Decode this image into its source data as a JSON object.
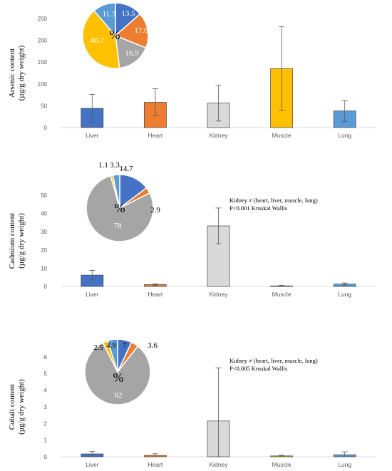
{
  "colors": {
    "liver": "#4472C4",
    "heart": "#ED7D31",
    "kidney": "#D9D9D9",
    "muscle": "#FFC000",
    "lung": "#5B9BD5",
    "pie_grey": "#A5A5A5",
    "axis": "#D9D9D9",
    "error": "#595959"
  },
  "pie_symbol": "%",
  "chart_data": [
    {
      "type": "bar",
      "ylabel_line1": "Arsenic content",
      "ylabel_line2": "(µg/g dry weight)",
      "categories": [
        "Liver",
        "Heart",
        "Kidney",
        "Muscle",
        "Lung"
      ],
      "values": [
        44,
        58,
        56,
        135,
        38
      ],
      "errors": [
        32,
        31,
        41,
        96,
        24
      ],
      "ylim": [
        0,
        250
      ],
      "yticks": [
        0,
        50,
        100,
        150,
        200,
        250
      ],
      "note_lines": [],
      "inset_pie": {
        "type": "pie",
        "values": [
          13.5,
          17.6,
          16.9,
          40.7,
          11.3
        ],
        "labels": [
          "13.5",
          "17.6",
          "16.9",
          "40.7",
          "11.3"
        ],
        "colors": [
          "#4472C4",
          "#ED7D31",
          "#A5A5A5",
          "#FFC000",
          "#5B9BD5"
        ]
      }
    },
    {
      "type": "bar",
      "ylabel_line1": "Cadmium content",
      "ylabel_line2": "(µg/g dry weight)",
      "categories": [
        "Liver",
        "Heart",
        "Kidney",
        "Muscle",
        "Lung"
      ],
      "values": [
        6.2,
        1.0,
        33.2,
        0.3,
        1.3
      ],
      "errors": [
        2.6,
        0.5,
        9.8,
        0.3,
        0.6
      ],
      "ylim": [
        0,
        50
      ],
      "yticks": [
        0,
        10,
        20,
        30,
        40,
        50
      ],
      "note_lines": [
        "Kidney ≠ (heart, liver, muscle, lung)",
        "P<0.001 Kruskal Wallis"
      ],
      "inset_pie": {
        "type": "pie",
        "values": [
          14.7,
          2.9,
          78,
          1.1,
          3.3
        ],
        "labels": [
          "14.7",
          "2.9",
          "78",
          "1.1",
          "3.3"
        ],
        "colors": [
          "#4472C4",
          "#ED7D31",
          "#A5A5A5",
          "#FFC000",
          "#5B9BD5"
        ]
      }
    },
    {
      "type": "bar",
      "ylabel_line1": "Cobalt content",
      "ylabel_line2": "(µg/g dry weight)",
      "categories": [
        "Liver",
        "Heart",
        "Kidney",
        "Muscle",
        "Lung"
      ],
      "values": [
        0.17,
        0.08,
        2.15,
        0.05,
        0.12
      ],
      "errors": [
        0.15,
        0.1,
        3.2,
        0.04,
        0.18
      ],
      "ylim": [
        0,
        6
      ],
      "yticks": [
        0,
        1,
        2,
        3,
        4,
        5,
        6
      ],
      "note_lines": [
        "Kidney ≠ (heart, liver, muscle, lung)",
        "P<0.005 Kruskal Wallis"
      ],
      "inset_pie": {
        "type": "pie",
        "values": [
          7,
          3.6,
          82,
          2.5,
          4.9
        ],
        "labels": [
          "7",
          "3.6",
          "82",
          "2.5",
          "4.9"
        ],
        "colors": [
          "#4472C4",
          "#ED7D31",
          "#A5A5A5",
          "#FFC000",
          "#5B9BD5"
        ]
      }
    }
  ]
}
